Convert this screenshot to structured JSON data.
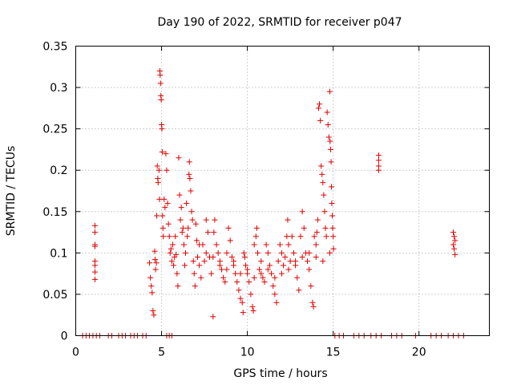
{
  "chart_data": {
    "type": "scatter",
    "title": "Day 190 of 2022, SRMTID for receiver p047",
    "xlabel": "GPS time / hours",
    "ylabel": "SRMTID / TECUs",
    "xlim": [
      0,
      24.1
    ],
    "ylim": [
      0,
      0.35
    ],
    "xticks": [
      0,
      5,
      10,
      15,
      20
    ],
    "xtick_labels": [
      "0",
      "5",
      "10",
      "15",
      "20"
    ],
    "yticks": [
      0,
      0.05,
      0.1,
      0.15,
      0.2,
      0.25,
      0.3,
      0.35
    ],
    "ytick_labels": [
      "0",
      "0.05",
      "0.1",
      "0.15",
      "0.2",
      "0.25",
      "0.3",
      "0.35"
    ],
    "grid": true,
    "marker": "plus",
    "color": "#e00000",
    "series": [
      {
        "name": "SRMTID",
        "points": [
          [
            0.4,
            0
          ],
          [
            0.6,
            0
          ],
          [
            0.8,
            0
          ],
          [
            1.0,
            0
          ],
          [
            1.2,
            0
          ],
          [
            1.4,
            0
          ],
          [
            1.9,
            0
          ],
          [
            2.1,
            0
          ],
          [
            2.5,
            0
          ],
          [
            2.7,
            0
          ],
          [
            2.9,
            0
          ],
          [
            3.2,
            0
          ],
          [
            3.4,
            0
          ],
          [
            3.6,
            0
          ],
          [
            3.9,
            0
          ],
          [
            4.1,
            0
          ],
          [
            5.3,
            0
          ],
          [
            5.45,
            0
          ],
          [
            5.6,
            0
          ],
          [
            15.1,
            0
          ],
          [
            15.35,
            0
          ],
          [
            15.6,
            0
          ],
          [
            16.2,
            0
          ],
          [
            16.5,
            0
          ],
          [
            16.8,
            0
          ],
          [
            17.2,
            0
          ],
          [
            17.5,
            0
          ],
          [
            17.8,
            0
          ],
          [
            18.4,
            0
          ],
          [
            18.7,
            0
          ],
          [
            19.0,
            0
          ],
          [
            19.8,
            0
          ],
          [
            20.7,
            0
          ],
          [
            21.0,
            0
          ],
          [
            21.3,
            0
          ],
          [
            21.7,
            0
          ],
          [
            22.0,
            0
          ],
          [
            22.3,
            0
          ],
          [
            22.6,
            0
          ],
          [
            1.12,
            0.133
          ],
          [
            1.12,
            0.125
          ],
          [
            1.12,
            0.11
          ],
          [
            1.12,
            0.108
          ],
          [
            1.12,
            0.09
          ],
          [
            1.12,
            0.085
          ],
          [
            1.12,
            0.077
          ],
          [
            1.12,
            0.068
          ],
          [
            4.3,
            0.088
          ],
          [
            4.35,
            0.07
          ],
          [
            4.4,
            0.06
          ],
          [
            4.45,
            0.052
          ],
          [
            4.5,
            0.03
          ],
          [
            4.55,
            0.025
          ],
          [
            4.6,
            0.102
          ],
          [
            4.62,
            0.092
          ],
          [
            4.65,
            0.08
          ],
          [
            4.7,
            0.088
          ],
          [
            4.72,
            0.145
          ],
          [
            4.75,
            0.205
          ],
          [
            4.78,
            0.19
          ],
          [
            4.8,
            0.185
          ],
          [
            4.85,
            0.2
          ],
          [
            4.88,
            0.165
          ],
          [
            4.9,
            0.32
          ],
          [
            4.92,
            0.315
          ],
          [
            4.94,
            0.305
          ],
          [
            4.96,
            0.29
          ],
          [
            4.98,
            0.285
          ],
          [
            5.0,
            0.255
          ],
          [
            5.02,
            0.25
          ],
          [
            5.04,
            0.222
          ],
          [
            5.06,
            0.145
          ],
          [
            5.08,
            0.13
          ],
          [
            5.1,
            0.12
          ],
          [
            5.15,
            0.165
          ],
          [
            5.2,
            0.155
          ],
          [
            5.25,
            0.22
          ],
          [
            5.3,
            0.2
          ],
          [
            5.35,
            0.16
          ],
          [
            5.4,
            0.135
          ],
          [
            5.45,
            0.12
          ],
          [
            5.5,
            0.1
          ],
          [
            5.55,
            0.105
          ],
          [
            5.6,
            0.09
          ],
          [
            5.65,
            0.11
          ],
          [
            5.7,
            0.085
          ],
          [
            5.75,
            0.095
          ],
          [
            5.8,
            0.12
          ],
          [
            5.85,
            0.098
          ],
          [
            5.9,
            0.075
          ],
          [
            5.95,
            0.06
          ],
          [
            6.0,
            0.215
          ],
          [
            6.05,
            0.17
          ],
          [
            6.1,
            0.14
          ],
          [
            6.15,
            0.155
          ],
          [
            6.2,
            0.125
          ],
          [
            6.25,
            0.13
          ],
          [
            6.3,
            0.11
          ],
          [
            6.35,
            0.085
          ],
          [
            6.4,
            0.1
          ],
          [
            6.45,
            0.16
          ],
          [
            6.5,
            0.12
          ],
          [
            6.55,
            0.13
          ],
          [
            6.6,
            0.195
          ],
          [
            6.62,
            0.21
          ],
          [
            6.65,
            0.19
          ],
          [
            6.7,
            0.175
          ],
          [
            6.75,
            0.15
          ],
          [
            6.8,
            0.14
          ],
          [
            6.85,
            0.09
          ],
          [
            6.9,
            0.075
          ],
          [
            6.95,
            0.06
          ],
          [
            7.0,
            0.135
          ],
          [
            7.05,
            0.115
          ],
          [
            7.1,
            0.095
          ],
          [
            7.2,
            0.085
          ],
          [
            7.3,
            0.07
          ],
          [
            7.4,
            0.11
          ],
          [
            7.5,
            0.09
          ],
          [
            7.6,
            0.14
          ],
          [
            7.7,
            0.125
          ],
          [
            7.8,
            0.095
          ],
          [
            7.9,
            0.075
          ],
          [
            8.0,
            0.023
          ],
          [
            8.05,
            0.125
          ],
          [
            8.1,
            0.14
          ],
          [
            8.2,
            0.11
          ],
          [
            8.3,
            0.1
          ],
          [
            8.4,
            0.09
          ],
          [
            8.5,
            0.08
          ],
          [
            8.6,
            0.07
          ],
          [
            8.7,
            0.065
          ],
          [
            8.8,
            0.1
          ],
          [
            8.9,
            0.13
          ],
          [
            9.0,
            0.115
          ],
          [
            9.1,
            0.095
          ],
          [
            9.2,
            0.085
          ],
          [
            9.3,
            0.075
          ],
          [
            9.4,
            0.065
          ],
          [
            9.5,
            0.055
          ],
          [
            9.6,
            0.045
          ],
          [
            9.7,
            0.04
          ],
          [
            9.75,
            0.028
          ],
          [
            9.8,
            0.1
          ],
          [
            9.85,
            0.095
          ],
          [
            9.9,
            0.085
          ],
          [
            10.0,
            0.075
          ],
          [
            10.1,
            0.065
          ],
          [
            10.2,
            0.05
          ],
          [
            10.3,
            0.035
          ],
          [
            10.35,
            0.03
          ],
          [
            10.4,
            0.11
          ],
          [
            10.5,
            0.12
          ],
          [
            10.55,
            0.13
          ],
          [
            10.6,
            0.1
          ],
          [
            10.7,
            0.08
          ],
          [
            10.8,
            0.09
          ],
          [
            10.9,
            0.07
          ],
          [
            11.0,
            0.065
          ],
          [
            11.1,
            0.11
          ],
          [
            11.2,
            0.1
          ],
          [
            11.3,
            0.085
          ],
          [
            11.4,
            0.075
          ],
          [
            11.5,
            0.06
          ],
          [
            11.6,
            0.05
          ],
          [
            11.7,
            0.04
          ],
          [
            11.8,
            0.09
          ],
          [
            11.9,
            0.11
          ],
          [
            12.0,
            0.1
          ],
          [
            12.1,
            0.085
          ],
          [
            12.2,
            0.095
          ],
          [
            12.3,
            0.12
          ],
          [
            12.35,
            0.14
          ],
          [
            12.4,
            0.11
          ],
          [
            12.5,
            0.09
          ],
          [
            12.6,
            0.12
          ],
          [
            12.7,
            0.1
          ],
          [
            12.8,
            0.085
          ],
          [
            12.9,
            0.07
          ],
          [
            13.0,
            0.055
          ],
          [
            13.1,
            0.12
          ],
          [
            13.2,
            0.15
          ],
          [
            13.3,
            0.13
          ],
          [
            13.4,
            0.1
          ],
          [
            13.5,
            0.09
          ],
          [
            13.6,
            0.08
          ],
          [
            13.7,
            0.06
          ],
          [
            13.8,
            0.04
          ],
          [
            13.85,
            0.035
          ],
          [
            13.9,
            0.12
          ],
          [
            14.0,
            0.11
          ],
          [
            14.05,
            0.125
          ],
          [
            14.1,
            0.14
          ],
          [
            14.15,
            0.275
          ],
          [
            14.2,
            0.28
          ],
          [
            14.25,
            0.26
          ],
          [
            14.3,
            0.205
          ],
          [
            14.35,
            0.195
          ],
          [
            14.4,
            0.185
          ],
          [
            14.45,
            0.17
          ],
          [
            14.5,
            0.15
          ],
          [
            14.55,
            0.13
          ],
          [
            14.6,
            0.12
          ],
          [
            14.65,
            0.27
          ],
          [
            14.7,
            0.255
          ],
          [
            14.75,
            0.24
          ],
          [
            14.8,
            0.295
          ],
          [
            14.82,
            0.235
          ],
          [
            14.85,
            0.225
          ],
          [
            14.88,
            0.21
          ],
          [
            14.9,
            0.18
          ],
          [
            14.92,
            0.16
          ],
          [
            14.95,
            0.145
          ],
          [
            14.97,
            0.13
          ],
          [
            15.0,
            0.12
          ],
          [
            15.02,
            0.105
          ],
          [
            7.2,
            0.11
          ],
          [
            7.6,
            0.1
          ],
          [
            8.0,
            0.095
          ],
          [
            8.4,
            0.085
          ],
          [
            8.8,
            0.08
          ],
          [
            9.2,
            0.09
          ],
          [
            9.6,
            0.075
          ],
          [
            10.0,
            0.08
          ],
          [
            10.4,
            0.07
          ],
          [
            10.8,
            0.075
          ],
          [
            11.2,
            0.08
          ],
          [
            11.6,
            0.07
          ],
          [
            12.0,
            0.075
          ],
          [
            12.4,
            0.08
          ],
          [
            12.8,
            0.09
          ],
          [
            13.2,
            0.095
          ],
          [
            13.6,
            0.1
          ],
          [
            14.0,
            0.095
          ],
          [
            14.4,
            0.09
          ],
          [
            14.8,
            0.1
          ],
          [
            17.65,
            0.218
          ],
          [
            17.65,
            0.212
          ],
          [
            17.65,
            0.205
          ],
          [
            17.65,
            0.2
          ],
          [
            22.0,
            0.125
          ],
          [
            22.05,
            0.12
          ],
          [
            22.1,
            0.115
          ],
          [
            22.0,
            0.11
          ],
          [
            22.05,
            0.105
          ],
          [
            22.1,
            0.098
          ]
        ]
      }
    ]
  }
}
